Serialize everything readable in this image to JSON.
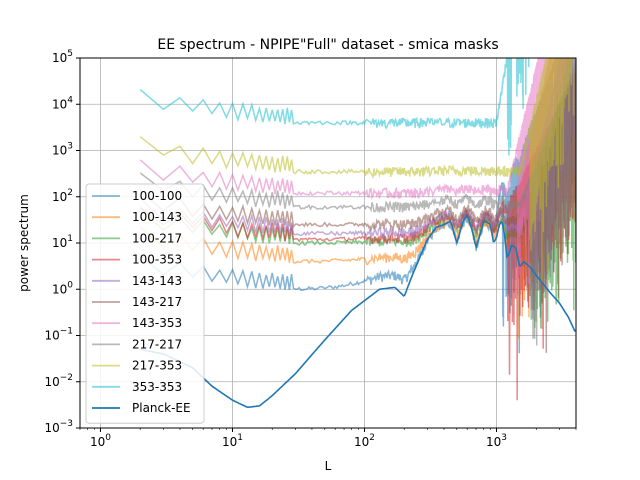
{
  "chart_data": {
    "type": "line",
    "title": "EE spectrum - NPIPE\"Full\" dataset - smica masks",
    "xlabel": "L",
    "ylabel": "power spectrum",
    "xscale": "log",
    "yscale": "log",
    "xlim": [
      0.7,
      4000
    ],
    "ylim": [
      0.001,
      100000
    ],
    "grid": true,
    "legend_position": "lower-left",
    "x_ticks": [
      {
        "v": 1,
        "base": "10",
        "exp": "0"
      },
      {
        "v": 10,
        "base": "10",
        "exp": "1"
      },
      {
        "v": 100,
        "base": "10",
        "exp": "2"
      },
      {
        "v": 1000,
        "base": "10",
        "exp": "3"
      }
    ],
    "y_ticks": [
      {
        "v": 0.001,
        "base": "10",
        "exp": "−3"
      },
      {
        "v": 0.01,
        "base": "10",
        "exp": "−2"
      },
      {
        "v": 0.1,
        "base": "10",
        "exp": "−1"
      },
      {
        "v": 1,
        "base": "10",
        "exp": "0"
      },
      {
        "v": 10,
        "base": "10",
        "exp": "1"
      },
      {
        "v": 100,
        "base": "10",
        "exp": "2"
      },
      {
        "v": 1000,
        "base": "10",
        "exp": "3"
      },
      {
        "v": 10000,
        "base": "10",
        "exp": "4"
      },
      {
        "v": 100000,
        "base": "10",
        "exp": "5"
      }
    ],
    "series": [
      {
        "name": "100-100",
        "color": "#1f77b4",
        "level": 1.0,
        "rise": 1.6,
        "riseStart": 900,
        "noisy": true
      },
      {
        "name": "100-143",
        "color": "#ff7f0e",
        "level": 4.0,
        "rise": 2.2,
        "riseStart": 1200,
        "noisy": true
      },
      {
        "name": "100-217",
        "color": "#2ca02c",
        "level": 10.0,
        "rise": 1.2,
        "riseStart": 1500,
        "noisy": true
      },
      {
        "name": "100-353",
        "color": "#d62728",
        "level": 12.0,
        "rise": 1.0,
        "riseStart": 1000,
        "noisy": true
      },
      {
        "name": "143-143",
        "color": "#9467bd",
        "level": 16.0,
        "rise": 2.0,
        "riseStart": 1500,
        "noisy": true
      },
      {
        "name": "143-217",
        "color": "#8c564b",
        "level": 25.0,
        "rise": 1.2,
        "riseStart": 1400,
        "noisy": true
      },
      {
        "name": "143-353",
        "color": "#e377c2",
        "level": 120.0,
        "rise": 2.0,
        "riseStart": 1200,
        "noisy": true
      },
      {
        "name": "217-217",
        "color": "#7f7f7f",
        "level": 60.0,
        "rise": 1.2,
        "riseStart": 1500,
        "noisy": true
      },
      {
        "name": "217-353",
        "color": "#bcbd22",
        "level": 350.0,
        "rise": 2.0,
        "riseStart": 1500,
        "noisy": true
      },
      {
        "name": "353-353",
        "color": "#17becf",
        "level": 4000.0,
        "rise": 3.0,
        "riseStart": 1000,
        "noisy": true
      }
    ],
    "planck": {
      "name": "Planck-EE",
      "color": "#1f77b4",
      "x": [
        2,
        3,
        5,
        7,
        10,
        13,
        16,
        20,
        30,
        50,
        80,
        130,
        170,
        200,
        230,
        300,
        350,
        400,
        450,
        500,
        560,
        600,
        650,
        700,
        750,
        800,
        850,
        900,
        950,
        1000,
        1050,
        1100,
        1150,
        1200,
        1250,
        1300,
        1400,
        1500,
        1600,
        1800,
        2000,
        2500,
        3000,
        3500,
        4000
      ],
      "y": [
        0.05,
        0.04,
        0.02,
        0.008,
        0.004,
        0.0028,
        0.003,
        0.005,
        0.015,
        0.08,
        0.35,
        1.0,
        1.1,
        0.7,
        2,
        12,
        22,
        25,
        30,
        10,
        30,
        40,
        20,
        8,
        15,
        30,
        28,
        25,
        10,
        13,
        25,
        30,
        15,
        5,
        6,
        9,
        8,
        3,
        4,
        3,
        2,
        0.9,
        0.5,
        0.25,
        0.11
      ]
    }
  }
}
